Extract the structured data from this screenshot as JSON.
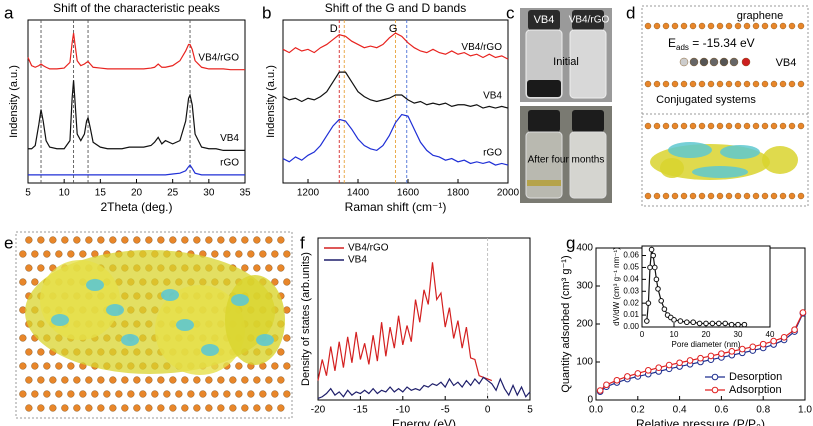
{
  "chart_data": [
    {
      "type": "line",
      "panel_label": "a",
      "title": "Shift of the characteristic peaks",
      "x_label": "2Theta (deg.)",
      "y_label": "Indensity (a.u.)",
      "x": [
        5,
        5.5,
        6,
        6.5,
        6.8,
        7.1,
        7.5,
        8,
        9,
        10,
        10.8,
        11.1,
        11.3,
        11.5,
        11.8,
        12.3,
        12.8,
        13.1,
        13.3,
        13.6,
        14,
        15,
        16,
        17,
        18,
        19,
        20,
        21,
        22,
        22.5,
        23,
        23.5,
        24,
        25,
        26,
        26.8,
        27.2,
        27.4,
        27.7,
        28.1,
        29,
        30,
        31,
        32,
        33,
        34,
        35
      ],
      "xlim": [
        5,
        35
      ],
      "xticks": [
        5,
        10,
        15,
        20,
        25,
        30,
        35
      ],
      "ylim": [
        0,
        10
      ],
      "legend": "curves",
      "reference_lines": [
        {
          "x": 6.8,
          "color": "#555555"
        },
        {
          "x": 11.3,
          "color": "#555555"
        },
        {
          "x": 13.3,
          "color": "#555555"
        },
        {
          "x": 27.4,
          "color": "#555555"
        }
      ],
      "series": [
        {
          "name": "VB4/rGO",
          "color": "#e8231f",
          "values": [
            7.7,
            7.2,
            7.1,
            7.2,
            7.3,
            7.2,
            7.1,
            7.0,
            7.0,
            7.05,
            7.4,
            8.6,
            9.2,
            8.5,
            7.5,
            7.2,
            7.3,
            7.4,
            7.45,
            7.3,
            7.1,
            7.05,
            7.0,
            7.0,
            7.0,
            7.0,
            7.0,
            7.0,
            7.05,
            7.1,
            7.3,
            7.1,
            7.1,
            7.2,
            7.5,
            8.1,
            8.5,
            8.5,
            8.2,
            7.5,
            7.1,
            7.0,
            7.0,
            7.0,
            6.95,
            6.95,
            6.95
          ]
        },
        {
          "name": "VB4",
          "color": "#111111",
          "values": [
            2.1,
            2.1,
            2.3,
            3.6,
            4.5,
            3.8,
            2.6,
            2.2,
            2.1,
            2.1,
            2.6,
            5.2,
            6.3,
            5.0,
            3.0,
            2.6,
            3.0,
            3.8,
            4.0,
            3.4,
            2.5,
            2.2,
            2.1,
            2.1,
            2.1,
            2.2,
            2.2,
            2.2,
            2.3,
            2.5,
            2.8,
            2.4,
            2.6,
            2.4,
            2.6,
            3.8,
            5.2,
            5.4,
            4.8,
            3.0,
            2.2,
            2.1,
            2.1,
            2.0,
            2.0,
            2.0,
            2.0
          ]
        },
        {
          "name": "rGO",
          "color": "#1f2fd6",
          "values": [
            0.5,
            0.5,
            0.5,
            0.5,
            0.5,
            0.5,
            0.5,
            0.5,
            0.5,
            0.5,
            0.5,
            0.5,
            0.5,
            0.5,
            0.5,
            0.5,
            0.5,
            0.5,
            0.5,
            0.5,
            0.5,
            0.5,
            0.5,
            0.5,
            0.5,
            0.5,
            0.5,
            0.5,
            0.5,
            0.5,
            0.5,
            0.5,
            0.5,
            0.55,
            0.6,
            0.75,
            1.0,
            1.1,
            0.9,
            0.6,
            0.5,
            0.5,
            0.5,
            0.5,
            0.5,
            0.5,
            0.5
          ]
        }
      ]
    },
    {
      "type": "line",
      "panel_label": "b",
      "title": "Shift of the G and D bands",
      "x_label": "Raman shift (cm⁻¹)",
      "y_label": "Indensity (a.u.)",
      "x": [
        1100,
        1125,
        1150,
        1175,
        1200,
        1225,
        1250,
        1275,
        1300,
        1325,
        1350,
        1375,
        1400,
        1425,
        1450,
        1475,
        1500,
        1525,
        1550,
        1575,
        1600,
        1625,
        1650,
        1675,
        1700,
        1725,
        1750,
        1775,
        1800,
        1825,
        1850,
        1875,
        1900,
        1925,
        1950,
        1975,
        2000
      ],
      "xlim": [
        1100,
        2000
      ],
      "xticks": [
        1200,
        1400,
        1600,
        1800,
        2000
      ],
      "ylim": [
        0,
        10
      ],
      "legend": "curves",
      "annotations": [
        "D",
        "G"
      ],
      "reference_lines": [
        {
          "x": 1325,
          "color": "#d62728"
        },
        {
          "x": 1345,
          "color": "#e8a33c"
        },
        {
          "x": 1550,
          "color": "#e8a33c"
        },
        {
          "x": 1595,
          "color": "#4a6fd6"
        }
      ],
      "series": [
        {
          "name": "VB4/rGO",
          "color": "#e8231f",
          "values": [
            8.2,
            8.0,
            8.3,
            8.1,
            8.2,
            8.0,
            8.3,
            8.5,
            8.8,
            9.1,
            9.0,
            8.7,
            8.5,
            8.3,
            8.4,
            8.3,
            8.5,
            8.9,
            9.2,
            9.0,
            8.6,
            8.3,
            8.1,
            8.0,
            8.2,
            8.0,
            7.9,
            8.1,
            7.9,
            8.0,
            7.8,
            7.9,
            7.7,
            7.9,
            7.7,
            7.8,
            7.6
          ]
        },
        {
          "name": "VB4",
          "color": "#111111",
          "values": [
            5.3,
            5.1,
            5.2,
            5.0,
            5.2,
            5.1,
            5.3,
            5.6,
            6.2,
            6.8,
            6.8,
            6.2,
            5.6,
            5.3,
            5.1,
            5.0,
            5.1,
            5.2,
            5.4,
            5.4,
            5.1,
            4.9,
            5.0,
            4.8,
            4.9,
            4.8,
            4.9,
            4.7,
            4.8,
            4.8,
            4.7,
            4.8,
            4.6,
            4.7,
            4.6,
            4.7,
            4.6
          ]
        },
        {
          "name": "rGO",
          "color": "#1f2fd6",
          "values": [
            1.5,
            1.3,
            1.6,
            1.4,
            1.7,
            1.9,
            2.3,
            2.9,
            3.5,
            3.9,
            3.8,
            3.3,
            2.7,
            2.3,
            2.1,
            2.0,
            2.3,
            2.9,
            3.7,
            4.2,
            4.1,
            3.3,
            2.5,
            2.0,
            1.7,
            1.6,
            1.4,
            1.5,
            1.3,
            1.4,
            1.2,
            1.3,
            1.2,
            1.3,
            1.1,
            1.2,
            1.1
          ]
        }
      ]
    },
    {
      "type": "line",
      "panel_label": "f",
      "x_label": "Energy (eV)",
      "y_label": "Density of states (arb.units)",
      "x": [
        -20,
        -19.5,
        -19,
        -18.5,
        -18,
        -17.5,
        -17,
        -16.5,
        -16,
        -15.5,
        -15,
        -14.5,
        -14,
        -13.5,
        -13,
        -12.5,
        -12,
        -11.5,
        -11,
        -10.5,
        -10,
        -9.5,
        -9,
        -8.5,
        -8,
        -7.5,
        -7,
        -6.5,
        -6,
        -5.5,
        -5,
        -4.5,
        -4,
        -3.5,
        -3,
        -2.5,
        -2,
        -1.5,
        -1,
        -0.5,
        0,
        0.5,
        1,
        1.5,
        2,
        2.5,
        3,
        3.5,
        4,
        4.5,
        5
      ],
      "xlim": [
        -20,
        5
      ],
      "xticks": [
        -20,
        -15,
        -10,
        -5,
        0,
        5
      ],
      "ylim": [
        0,
        10
      ],
      "legend": "upper left",
      "reference_lines": [
        {
          "x": 0,
          "color": "#bbbbbb"
        }
      ],
      "series": [
        {
          "name": "VB4/rGO",
          "color": "#d42020",
          "values": [
            1.2,
            2.5,
            1.5,
            3.3,
            1.8,
            3.6,
            2.0,
            3.9,
            2.3,
            4.2,
            2.5,
            3.5,
            2.2,
            4.0,
            2.4,
            4.8,
            2.7,
            4.5,
            3.2,
            5.2,
            3.4,
            4.6,
            3.6,
            6.2,
            4.8,
            6.8,
            5.9,
            8.5,
            6.2,
            6.6,
            4.5,
            5.7,
            3.8,
            4.9,
            3.2,
            4.5,
            2.6,
            2.5,
            1.5,
            1.4,
            1.3,
            1.2,
            null,
            null,
            null,
            null,
            null,
            null,
            null,
            null,
            null
          ]
        },
        {
          "name": "VB4",
          "color": "#1f1f6b",
          "values": [
            0.1,
            0.2,
            0.4,
            0.7,
            0.3,
            0.5,
            0.2,
            0.6,
            0.3,
            0.5,
            0.4,
            0.6,
            0.4,
            0.7,
            0.4,
            0.6,
            0.5,
            0.8,
            0.5,
            0.7,
            0.5,
            0.8,
            0.6,
            0.7,
            0.6,
            0.9,
            0.8,
            1.0,
            0.9,
            1.1,
            0.8,
            1.3,
            0.9,
            1.1,
            0.8,
            1.2,
            0.9,
            1.3,
            1.0,
            1.4,
            1.2,
            1.0,
            0.6,
            1.3,
            0.7,
            0.3,
            0.9,
            0.3,
            0.8,
            0.2,
            0.5
          ]
        }
      ]
    },
    {
      "type": "line",
      "panel_label": "g",
      "markers": true,
      "x_label": "Relative pressure (P/P₀)",
      "y_label": "Quantity adsorbed (cm³ g⁻¹)",
      "x": [
        0.02,
        0.05,
        0.1,
        0.15,
        0.2,
        0.25,
        0.3,
        0.35,
        0.4,
        0.45,
        0.5,
        0.55,
        0.6,
        0.65,
        0.7,
        0.75,
        0.8,
        0.85,
        0.9,
        0.95,
        0.99
      ],
      "xlim": [
        0,
        1
      ],
      "xticks": [
        {
          "value": 0,
          "label": "0.0"
        },
        0.2,
        0.4,
        0.6,
        0.8,
        {
          "value": 1,
          "label": "1.0"
        }
      ],
      "ylim": [
        0,
        400
      ],
      "yticks": [
        0,
        100,
        200,
        300,
        400
      ],
      "legend": "lower right",
      "series": [
        {
          "name": "Desorption",
          "color": "#1f2f8f",
          "values": [
            22,
            35,
            46,
            55,
            62,
            68,
            75,
            82,
            88,
            94,
            100,
            106,
            112,
            118,
            124,
            130,
            137,
            146,
            158,
            180,
            228
          ]
        },
        {
          "name": "Adsorption",
          "color": "#e02020",
          "values": [
            25,
            40,
            52,
            62,
            70,
            78,
            85,
            92,
            98,
            104,
            110,
            116,
            122,
            128,
            134,
            140,
            147,
            155,
            165,
            185,
            230
          ]
        }
      ]
    },
    {
      "type": "line",
      "markers": true,
      "x_label": "Pore diameter (nm)",
      "y_label": "dV/dW (cm³ g⁻¹ nm⁻¹)",
      "x": [
        1.5,
        2,
        2.5,
        3,
        3.5,
        4,
        4.5,
        5,
        6,
        7,
        8,
        9,
        10,
        12,
        14,
        16,
        18,
        20,
        22,
        24,
        26,
        28,
        30,
        32
      ],
      "xlim": [
        0,
        40
      ],
      "xticks": [
        0,
        10,
        20,
        30,
        40
      ],
      "ylim": [
        0,
        0.068
      ],
      "yticks": [
        {
          "value": 0,
          "label": "0.00"
        },
        {
          "value": 0.01,
          "label": "0.01"
        },
        {
          "value": 0.02,
          "label": "0.02"
        },
        {
          "value": 0.03,
          "label": "0.03"
        },
        {
          "value": 0.04,
          "label": "0.04"
        },
        {
          "value": 0.05,
          "label": "0.05"
        },
        {
          "value": 0.06,
          "label": "0.06"
        }
      ],
      "series": [
        {
          "color": "#111111",
          "values": [
            0.005,
            0.02,
            0.05,
            0.065,
            0.06,
            0.05,
            0.04,
            0.032,
            0.022,
            0.015,
            0.01,
            0.008,
            0.006,
            0.005,
            0.004,
            0.004,
            0.003,
            0.003,
            0.003,
            0.003,
            0.003,
            0.002,
            0.002,
            0.002
          ]
        }
      ]
    }
  ],
  "photos": {
    "panel_label": "c",
    "labels": [
      "VB4",
      "VB4/rGO"
    ],
    "top_caption": "Initial",
    "bottom_caption": "After four months"
  },
  "model": {
    "panel_label": "d",
    "graphene": "graphene",
    "energy": {
      "symbol": "E",
      "subscript": "ads",
      "text": " = -15.34 eV"
    },
    "molecule": "VB4",
    "substrate": "Conjugated systems"
  },
  "charge_density": {
    "panel_label": "e"
  }
}
